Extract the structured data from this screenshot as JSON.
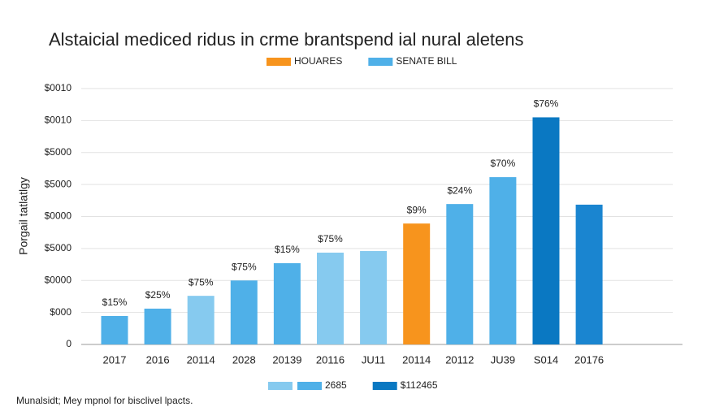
{
  "chart_data": {
    "type": "bar",
    "title": "Alstaicial mediced ridus in crme brantspend ial nural aletens",
    "y_label": "Porgail tatlatlgy",
    "footnote": "Munalsidt; Mey mpnol for bisclivel lpacts.",
    "categories": [
      "2017",
      "2016",
      "20114",
      "2028",
      "20139",
      "20116",
      "JU11",
      "20114",
      "20112",
      "JU39",
      "S014",
      "20176"
    ],
    "values": [
      0.89,
      1.12,
      1.52,
      2.0,
      2.54,
      2.87,
      2.92,
      3.78,
      4.39,
      5.23,
      7.1,
      4.37
    ],
    "colors": [
      "#4fb0e8",
      "#4fb0e8",
      "#86caef",
      "#4fb0e8",
      "#4fb0e8",
      "#86caef",
      "#86caef",
      "#f7941d",
      "#4fb0e8",
      "#4fb0e8",
      "#0a78c2",
      "#1a85d0"
    ],
    "bar_annotations": [
      "$15%",
      "$25%",
      "$75%",
      "$75%",
      "$15%",
      "$75%",
      null,
      "$9%",
      "$24%",
      "$70%",
      "$76%",
      null
    ],
    "ylim": [
      0,
      8
    ],
    "yticks": [
      0,
      {
        "value": 1,
        "label": "$000"
      },
      {
        "value": 2,
        "label": "$0000"
      },
      {
        "value": 3,
        "label": "$5000"
      },
      {
        "value": 4,
        "label": "$0000"
      },
      {
        "value": 5,
        "label": "$5000"
      },
      {
        "value": 6,
        "label": "$5000"
      },
      {
        "value": 7,
        "label": "$0010"
      },
      {
        "value": 8,
        "label": "$0010"
      }
    ],
    "grid": true,
    "legend_top": [
      {
        "name": "HOUARES",
        "colors": [
          "#f7941d"
        ]
      },
      {
        "name": "SENATE BILL",
        "colors": [
          "#4fb0e8"
        ]
      }
    ],
    "legend_bottom": [
      {
        "name": "2685",
        "colors": [
          "#86caef",
          "#4fb0e8"
        ]
      },
      {
        "name": "$112465",
        "colors": [
          "#0a78c2"
        ]
      }
    ]
  }
}
